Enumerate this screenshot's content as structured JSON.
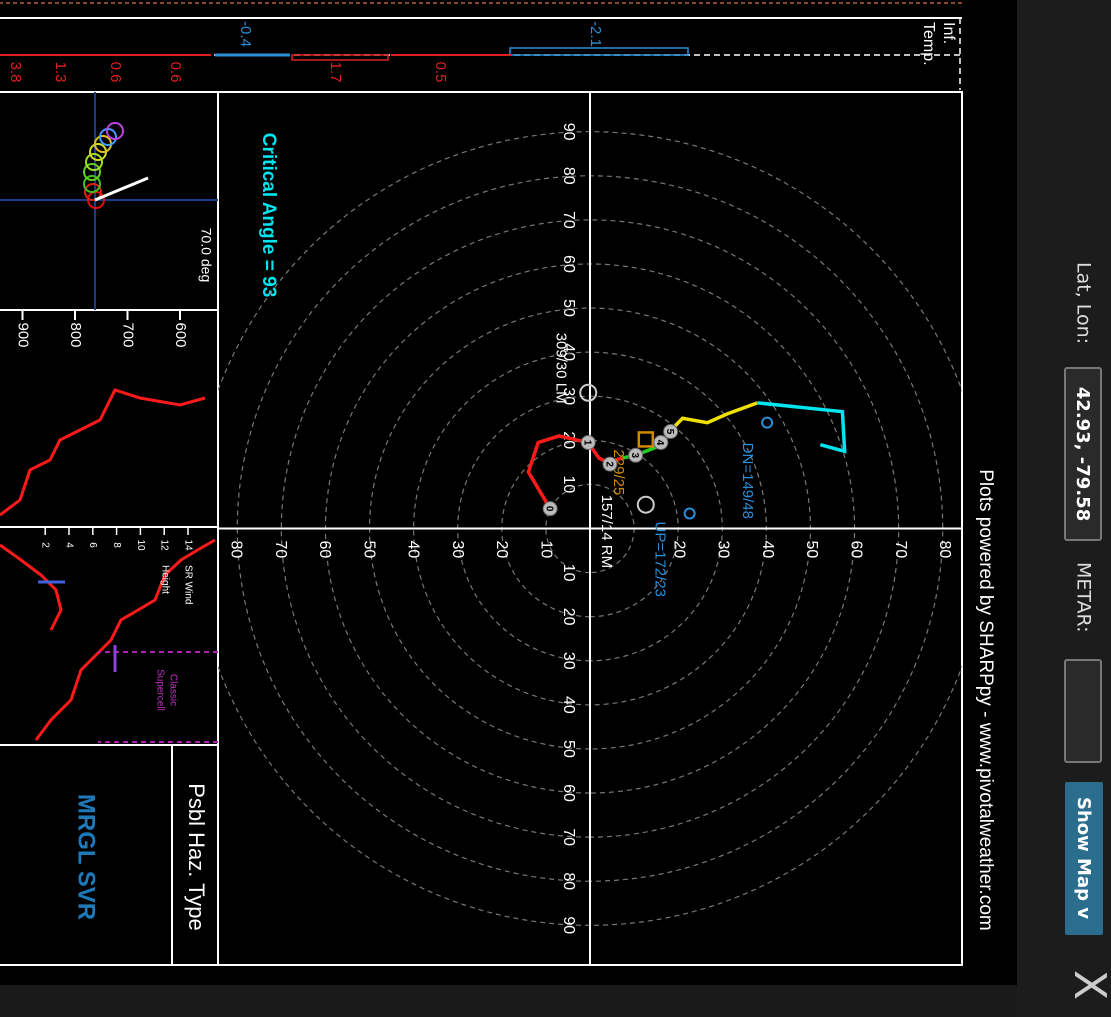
{
  "header": {
    "lat_lon_label": "Lat, Lon:",
    "lat_lon_value": "42.93, -79.58",
    "metar_label": "METAR:",
    "show_map": "Show Map v",
    "close": "X"
  },
  "title": "Plots powered by SHARPpy - www.pivotalweather.com",
  "inferred_temp": {
    "label_1": "Inf.",
    "label_2": "Temp.",
    "blue_values": [
      -2.1,
      -0.4
    ],
    "red_values": [
      0.5,
      1.7,
      0.6,
      0.6,
      1.3,
      3.8
    ]
  },
  "hodograph": {
    "critical_angle": "Critical Angle = 93",
    "xlim": [
      -99,
      99
    ],
    "ylim": [
      -84,
      84
    ],
    "xticks": [
      {
        "value": -90,
        "label": "90"
      },
      {
        "value": -80,
        "label": "80"
      },
      {
        "value": -70,
        "label": "70"
      },
      {
        "value": -60,
        "label": "60"
      },
      {
        "value": -50,
        "label": "50"
      },
      {
        "value": -40,
        "label": "40"
      },
      {
        "value": -30,
        "label": "30"
      },
      {
        "value": -20,
        "label": "20"
      },
      {
        "value": -10,
        "label": "10"
      },
      10,
      20,
      30,
      40,
      50,
      60,
      70,
      80,
      90
    ],
    "yticks": [
      {
        "value": -80,
        "label": "80"
      },
      {
        "value": -70,
        "label": "70"
      },
      {
        "value": -60,
        "label": "60"
      },
      {
        "value": -50,
        "label": "50"
      },
      {
        "value": -40,
        "label": "40"
      },
      {
        "value": -30,
        "label": "30"
      },
      {
        "value": -20,
        "label": "20"
      },
      {
        "value": -10,
        "label": "10"
      },
      20,
      30,
      40,
      50,
      60,
      70,
      80
    ],
    "traces": [
      {
        "color": "#ff1a1a",
        "u": [
          -4.5,
          -12.8,
          -19.5,
          -21,
          -19.5,
          -16,
          -15,
          -16
        ],
        "v": [
          -9,
          -13.9,
          -11.7,
          -7,
          -0.4,
          2,
          4,
          7.4
        ]
      },
      {
        "color": "#22cc22",
        "u": [
          -16,
          -16.6,
          -19,
          -22
        ],
        "v": [
          7.4,
          10.3,
          16.4,
          18
        ]
      },
      {
        "color": "#f0e000",
        "u": [
          -22,
          -25,
          -24,
          -26,
          -28.5
        ],
        "v": [
          18,
          20.9,
          26.5,
          31,
          37.8
        ]
      },
      {
        "color": "#00e5ee",
        "u": [
          -28.5,
          -26.5,
          -17.5,
          -19
        ],
        "v": [
          37.8,
          57,
          57.5,
          52
        ]
      }
    ],
    "height_markers": {
      "labels": [
        0,
        1,
        2,
        3,
        4,
        5
      ],
      "u": [
        -4.5,
        -19.5,
        -14.6,
        -16.6,
        -19.5,
        -22
      ],
      "v": [
        -9,
        -0.4,
        4.5,
        10.3,
        16,
        18.2
      ]
    },
    "storm_motions": [
      {
        "label": "157/14 RM",
        "color": "#ffffff",
        "u": -5.4,
        "v": 12.6
      },
      {
        "label": "309/30 LM",
        "color": "#ffffff",
        "u": -30.8,
        "v": -0.4
      },
      {
        "label": "229/25",
        "color": "#d08a00",
        "u": -20.2,
        "v": 12.6
      },
      {
        "label": "UP=172/23",
        "color": "#2a8fd8",
        "u": -3.4,
        "v": 22.5
      },
      {
        "label": "DN=149/48",
        "color": "#2a8fd8",
        "u": -24,
        "v": 40
      }
    ]
  },
  "storm_slinky": {
    "angle": "70.0 deg"
  },
  "profile": {
    "ticks": [
      600,
      700,
      800,
      900
    ]
  },
  "sr_wind": {
    "label_1": "SR Wind",
    "label_2": "Height",
    "ticks": [
      14,
      12,
      10,
      8,
      6,
      4,
      2
    ],
    "note_1": "Classic",
    "note_2": "Supercell"
  },
  "hazard": {
    "title": "Psbl Haz. Type",
    "value": "MRGL SVR"
  }
}
